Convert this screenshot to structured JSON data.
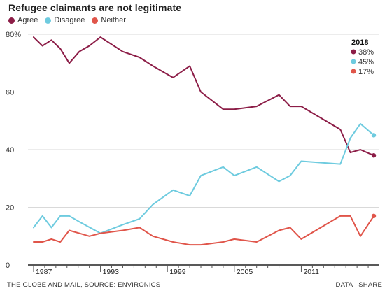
{
  "chart_data": {
    "type": "line",
    "title": "Refugee claimants are not legitimate",
    "ylim": [
      0,
      80
    ],
    "yticks": [
      "0",
      "20",
      "40",
      "60",
      "80%"
    ],
    "ytick_values": [
      0,
      20,
      40,
      60,
      80
    ],
    "xlim": [
      1986.5,
      2018
    ],
    "xticks": [
      1987,
      1993,
      1999,
      2005,
      2011
    ],
    "xtick_labels": [
      "1987",
      "1993",
      "1999",
      "2005",
      "2011"
    ],
    "grid": true,
    "legend_position": "top-left",
    "series": [
      {
        "name": "Agree",
        "color": "#8c1d47",
        "x": [
          1987,
          1987.8,
          1988.6,
          1989.4,
          1990.2,
          1991.1,
          1992,
          1993,
          1995,
          1996.5,
          1997.7,
          1999.5,
          2001,
          2002,
          2004,
          2005,
          2007,
          2009,
          2010,
          2011,
          2014.5,
          2015.4,
          2016.3,
          2017.5
        ],
        "values": [
          79,
          76,
          78,
          75,
          70,
          74,
          76,
          79,
          74,
          72,
          69,
          65,
          69,
          60,
          54,
          54,
          55,
          59,
          55,
          55,
          47,
          39,
          40,
          38
        ]
      },
      {
        "name": "Disagree",
        "color": "#6ecbdf",
        "x": [
          1987,
          1987.8,
          1988.6,
          1989.4,
          1990.2,
          1991.1,
          1993,
          1995,
          1996.5,
          1997.7,
          1999.5,
          2001,
          2002,
          2004,
          2005,
          2007,
          2009,
          2010,
          2011,
          2014.5,
          2015.4,
          2016.3,
          2017.5
        ],
        "values": [
          13,
          17,
          13,
          17,
          17,
          15,
          11,
          14,
          16,
          21,
          26,
          24,
          31,
          34,
          31,
          34,
          29,
          31,
          36,
          35,
          44,
          49,
          45
        ]
      },
      {
        "name": "Neither",
        "color": "#e0554a",
        "x": [
          1987,
          1987.8,
          1988.6,
          1989.4,
          1990.2,
          1991.1,
          1992,
          1993,
          1995,
          1996.5,
          1997.7,
          1999.5,
          2001,
          2002,
          2004,
          2005,
          2007,
          2009,
          2010,
          2011,
          2014.5,
          2015.4,
          2016.3,
          2017.5
        ],
        "values": [
          8,
          8,
          9,
          8,
          12,
          11,
          10,
          11,
          12,
          13,
          10,
          8,
          7,
          7,
          8,
          9,
          8,
          12,
          13,
          9,
          17,
          17,
          10,
          17
        ]
      }
    ],
    "end_labels": {
      "heading": "2018",
      "items": [
        {
          "name": "Agree",
          "text": "38%"
        },
        {
          "name": "Disagree",
          "text": "45%"
        },
        {
          "name": "Neither",
          "text": "17%"
        }
      ]
    }
  },
  "legend": {
    "items": [
      {
        "label": "Agree",
        "color": "#8c1d47"
      },
      {
        "label": "Disagree",
        "color": "#6ecbdf"
      },
      {
        "label": "Neither",
        "color": "#e0554a"
      }
    ]
  },
  "footer": {
    "credit": "THE GLOBE AND MAIL, SOURCE: ENVIRONICS",
    "data_link": "DATA",
    "share_link": "SHARE"
  }
}
